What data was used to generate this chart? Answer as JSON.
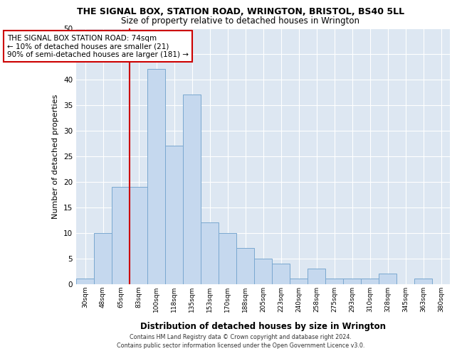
{
  "title1": "THE SIGNAL BOX, STATION ROAD, WRINGTON, BRISTOL, BS40 5LL",
  "title2": "Size of property relative to detached houses in Wrington",
  "xlabel": "Distribution of detached houses by size in Wrington",
  "ylabel": "Number of detached properties",
  "bar_labels": [
    "30sqm",
    "48sqm",
    "65sqm",
    "83sqm",
    "100sqm",
    "118sqm",
    "135sqm",
    "153sqm",
    "170sqm",
    "188sqm",
    "205sqm",
    "223sqm",
    "240sqm",
    "258sqm",
    "275sqm",
    "293sqm",
    "310sqm",
    "328sqm",
    "345sqm",
    "363sqm",
    "380sqm"
  ],
  "bar_values": [
    1,
    10,
    19,
    19,
    42,
    27,
    37,
    12,
    10,
    7,
    5,
    4,
    1,
    3,
    1,
    1,
    1,
    2,
    0,
    1,
    0
  ],
  "bar_color": "#c5d8ee",
  "bar_edge_color": "#7aa8d0",
  "bg_color": "#dde7f2",
  "grid_color": "#ffffff",
  "vline_color": "#cc0000",
  "annotation_text": "THE SIGNAL BOX STATION ROAD: 74sqm\n← 10% of detached houses are smaller (21)\n90% of semi-detached houses are larger (181) →",
  "annotation_box_color": "#ffffff",
  "annotation_box_edge": "#cc0000",
  "ylim": [
    0,
    50
  ],
  "yticks": [
    0,
    5,
    10,
    15,
    20,
    25,
    30,
    35,
    40,
    45,
    50
  ],
  "footer1": "Contains HM Land Registry data © Crown copyright and database right 2024.",
  "footer2": "Contains public sector information licensed under the Open Government Licence v3.0."
}
